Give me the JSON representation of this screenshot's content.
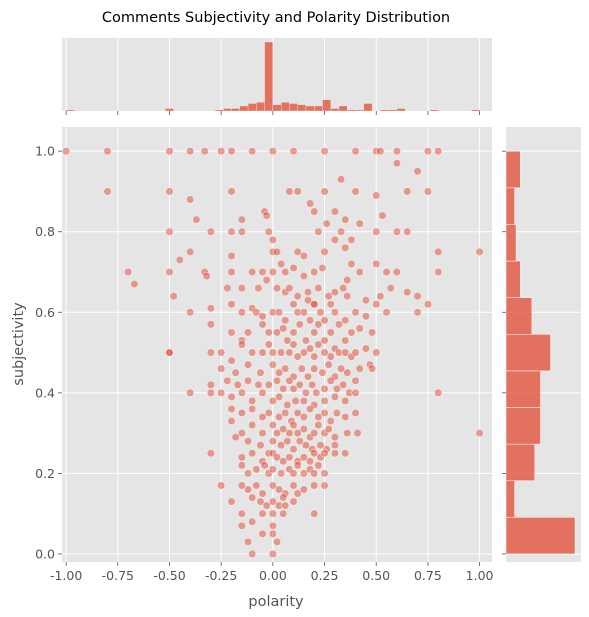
{
  "chart_data": {
    "type": "scatter",
    "title": "Comments Subjectivity and Polarity Distribution",
    "xlabel": "polarity",
    "ylabel": "subjectivity",
    "xlim": [
      -1.02,
      1.06
    ],
    "ylim": [
      -0.02,
      1.06
    ],
    "xticks": [
      "-1.00",
      "-0.75",
      "-0.50",
      "-0.25",
      "0.00",
      "0.25",
      "0.50",
      "0.75",
      "1.00"
    ],
    "yticks": [
      "0.0",
      "0.2",
      "0.4",
      "0.6",
      "0.8",
      "1.0"
    ],
    "grid": true,
    "style": "ggplot",
    "color": "#E24A33",
    "marginal_x_hist": {
      "bin_edges_start": -1.0,
      "bin_width": 0.04,
      "counts": [
        1,
        0,
        0,
        0,
        0,
        0,
        0,
        0,
        0,
        0,
        0,
        0,
        2,
        0,
        0,
        0,
        0,
        0,
        1,
        2,
        2,
        4,
        6,
        7,
        55,
        5,
        7,
        6,
        5,
        4,
        4,
        9,
        2,
        4,
        1,
        1,
        6,
        0,
        1,
        1,
        2,
        0,
        0,
        0,
        1,
        0,
        0,
        0,
        0,
        1
      ]
    },
    "marginal_y_hist": {
      "bin_edges_start": 0.0,
      "bin_width": 0.0909,
      "counts": [
        48,
        6,
        20,
        24,
        24,
        31,
        18,
        10,
        7,
        6,
        10
      ]
    },
    "points": [
      [
        -1.0,
        1.0
      ],
      [
        -0.8,
        1.0
      ],
      [
        -0.8,
        0.9
      ],
      [
        -0.5,
        1.0
      ],
      [
        -0.5,
        0.9
      ],
      [
        -0.5,
        0.8
      ],
      [
        -0.5,
        0.7
      ],
      [
        -0.5,
        0.5
      ],
      [
        -0.7,
        0.7
      ],
      [
        -0.67,
        0.67
      ],
      [
        -0.48,
        0.64
      ],
      [
        -0.4,
        1.0
      ],
      [
        -0.33,
        1.0
      ],
      [
        -0.25,
        1.0
      ],
      [
        -0.2,
        1.0
      ],
      [
        -0.1,
        1.0
      ],
      [
        0.0,
        1.0
      ],
      [
        0.1,
        1.0
      ],
      [
        0.25,
        1.0
      ],
      [
        0.4,
        1.0
      ],
      [
        0.5,
        1.0
      ],
      [
        0.52,
        1.0
      ],
      [
        0.6,
        1.0
      ],
      [
        0.75,
        1.0
      ],
      [
        0.8,
        1.0
      ],
      [
        0.6,
        0.97
      ],
      [
        0.7,
        0.95
      ],
      [
        0.75,
        0.9
      ],
      [
        0.65,
        0.9
      ],
      [
        0.5,
        0.89
      ],
      [
        0.4,
        0.9
      ],
      [
        0.33,
        0.93
      ],
      [
        0.25,
        0.9
      ],
      [
        0.12,
        0.9
      ],
      [
        0.08,
        0.9
      ],
      [
        -0.2,
        0.9
      ],
      [
        -0.4,
        0.88
      ],
      [
        -0.3,
        0.8
      ],
      [
        -0.15,
        0.83
      ],
      [
        -0.2,
        0.8
      ],
      [
        -0.04,
        0.85
      ],
      [
        -0.03,
        0.84
      ],
      [
        0.18,
        0.87
      ],
      [
        0.2,
        0.85
      ],
      [
        0.3,
        0.85
      ],
      [
        0.33,
        0.8
      ],
      [
        0.35,
        0.83
      ],
      [
        0.42,
        0.82
      ],
      [
        0.5,
        0.8
      ],
      [
        0.53,
        0.84
      ],
      [
        0.6,
        0.8
      ],
      [
        0.65,
        0.8
      ],
      [
        -0.37,
        0.83
      ],
      [
        -0.15,
        0.8
      ],
      [
        -0.4,
        0.75
      ],
      [
        -0.45,
        0.73
      ],
      [
        -0.2,
        0.74
      ],
      [
        -0.02,
        0.8
      ],
      [
        0.0,
        0.78
      ],
      [
        0.0,
        0.75
      ],
      [
        0.02,
        0.75
      ],
      [
        0.12,
        0.75
      ],
      [
        0.15,
        0.74
      ],
      [
        0.25,
        0.75
      ],
      [
        0.3,
        0.78
      ],
      [
        0.35,
        0.76
      ],
      [
        0.38,
        0.78
      ],
      [
        0.5,
        0.72
      ],
      [
        0.8,
        0.75
      ],
      [
        1.0,
        0.75
      ],
      [
        0.22,
        0.8
      ],
      [
        0.26,
        0.82
      ],
      [
        -0.33,
        0.7
      ],
      [
        -0.2,
        0.7
      ],
      [
        -0.1,
        0.7
      ],
      [
        -0.05,
        0.7
      ],
      [
        0.0,
        0.7
      ],
      [
        0.04,
        0.72
      ],
      [
        0.06,
        0.7
      ],
      [
        0.1,
        0.71
      ],
      [
        0.15,
        0.69
      ],
      [
        0.2,
        0.7
      ],
      [
        0.24,
        0.71
      ],
      [
        0.36,
        0.68
      ],
      [
        0.42,
        0.7
      ],
      [
        0.55,
        0.7
      ],
      [
        0.6,
        0.7
      ],
      [
        0.8,
        0.7
      ],
      [
        0.38,
        0.72
      ],
      [
        0.06,
        0.65
      ],
      [
        -0.32,
        0.69
      ],
      [
        -0.22,
        0.66
      ],
      [
        -0.15,
        0.66
      ],
      [
        -0.07,
        0.66
      ],
      [
        -0.03,
        0.68
      ],
      [
        0.02,
        0.66
      ],
      [
        0.08,
        0.66
      ],
      [
        0.12,
        0.64
      ],
      [
        0.17,
        0.65
      ],
      [
        0.22,
        0.66
      ],
      [
        0.27,
        0.64
      ],
      [
        0.3,
        0.65
      ],
      [
        0.34,
        0.66
      ],
      [
        0.36,
        0.64
      ],
      [
        0.45,
        0.63
      ],
      [
        0.52,
        0.64
      ],
      [
        0.57,
        0.66
      ],
      [
        0.65,
        0.65
      ],
      [
        0.7,
        0.64
      ],
      [
        0.75,
        0.62
      ],
      [
        -0.4,
        0.6
      ],
      [
        -0.3,
        0.61
      ],
      [
        -0.2,
        0.62
      ],
      [
        -0.15,
        0.6
      ],
      [
        -0.1,
        0.61
      ],
      [
        -0.08,
        0.6
      ],
      [
        -0.05,
        0.59
      ],
      [
        0.0,
        0.6
      ],
      [
        0.03,
        0.6
      ],
      [
        0.06,
        0.58
      ],
      [
        0.1,
        0.62
      ],
      [
        0.12,
        0.6
      ],
      [
        0.15,
        0.6
      ],
      [
        0.18,
        0.58
      ],
      [
        0.2,
        0.62
      ],
      [
        0.23,
        0.6
      ],
      [
        0.25,
        0.58
      ],
      [
        0.28,
        0.62
      ],
      [
        0.3,
        0.6
      ],
      [
        0.35,
        0.58
      ],
      [
        0.4,
        0.6
      ],
      [
        0.45,
        0.59
      ],
      [
        0.5,
        0.62
      ],
      [
        0.55,
        0.6
      ],
      [
        0.7,
        0.6
      ],
      [
        0.2,
        0.62
      ],
      [
        0.17,
        0.63
      ],
      [
        -0.3,
        0.57
      ],
      [
        -0.2,
        0.55
      ],
      [
        -0.15,
        0.53
      ],
      [
        -0.12,
        0.55
      ],
      [
        -0.05,
        0.57
      ],
      [
        -0.02,
        0.55
      ],
      [
        0.02,
        0.55
      ],
      [
        0.05,
        0.56
      ],
      [
        0.07,
        0.53
      ],
      [
        0.1,
        0.55
      ],
      [
        0.13,
        0.57
      ],
      [
        0.16,
        0.53
      ],
      [
        0.2,
        0.55
      ],
      [
        0.22,
        0.57
      ],
      [
        0.25,
        0.53
      ],
      [
        0.28,
        0.55
      ],
      [
        0.32,
        0.57
      ],
      [
        0.35,
        0.53
      ],
      [
        0.38,
        0.55
      ],
      [
        0.42,
        0.56
      ],
      [
        0.48,
        0.55
      ],
      [
        -0.5,
        0.5
      ],
      [
        -0.3,
        0.5
      ],
      [
        -0.25,
        0.5
      ],
      [
        -0.15,
        0.52
      ],
      [
        -0.1,
        0.5
      ],
      [
        -0.05,
        0.5
      ],
      [
        -0.02,
        0.52
      ],
      [
        0.0,
        0.5
      ],
      [
        0.04,
        0.5
      ],
      [
        0.08,
        0.5
      ],
      [
        0.1,
        0.52
      ],
      [
        0.12,
        0.49
      ],
      [
        0.15,
        0.5
      ],
      [
        0.18,
        0.51
      ],
      [
        0.2,
        0.49
      ],
      [
        0.22,
        0.52
      ],
      [
        0.25,
        0.5
      ],
      [
        0.28,
        0.49
      ],
      [
        0.3,
        0.51
      ],
      [
        0.32,
        0.5
      ],
      [
        0.35,
        0.5
      ],
      [
        0.38,
        0.49
      ],
      [
        0.4,
        0.5
      ],
      [
        0.45,
        0.51
      ],
      [
        0.5,
        0.5
      ],
      [
        -0.2,
        0.48
      ],
      [
        -0.25,
        0.46
      ],
      [
        -0.18,
        0.45
      ],
      [
        -0.12,
        0.47
      ],
      [
        -0.06,
        0.45
      ],
      [
        0.0,
        0.47
      ],
      [
        0.03,
        0.45
      ],
      [
        0.06,
        0.46
      ],
      [
        0.1,
        0.44
      ],
      [
        0.14,
        0.46
      ],
      [
        0.17,
        0.44
      ],
      [
        0.2,
        0.46
      ],
      [
        0.24,
        0.45
      ],
      [
        0.27,
        0.47
      ],
      [
        0.3,
        0.44
      ],
      [
        0.33,
        0.46
      ],
      [
        0.36,
        0.45
      ],
      [
        0.42,
        0.46
      ],
      [
        0.47,
        0.47
      ],
      [
        0.48,
        0.46
      ],
      [
        -0.3,
        0.42
      ],
      [
        -0.22,
        0.43
      ],
      [
        -0.17,
        0.42
      ],
      [
        -0.12,
        0.43
      ],
      [
        -0.07,
        0.42
      ],
      [
        -0.02,
        0.42
      ],
      [
        0.02,
        0.43
      ],
      [
        0.05,
        0.41
      ],
      [
        0.08,
        0.43
      ],
      [
        0.1,
        0.41
      ],
      [
        0.13,
        0.42
      ],
      [
        0.16,
        0.4
      ],
      [
        0.19,
        0.42
      ],
      [
        0.21,
        0.4
      ],
      [
        0.25,
        0.41
      ],
      [
        0.28,
        0.43
      ],
      [
        0.31,
        0.41
      ],
      [
        0.34,
        0.42
      ],
      [
        0.37,
        0.4
      ],
      [
        0.4,
        0.43
      ],
      [
        -0.4,
        0.4
      ],
      [
        -0.3,
        0.4
      ],
      [
        -0.25,
        0.4
      ],
      [
        -0.2,
        0.39
      ],
      [
        -0.15,
        0.4
      ],
      [
        -0.1,
        0.38
      ],
      [
        -0.05,
        0.4
      ],
      [
        0.0,
        0.38
      ],
      [
        0.03,
        0.39
      ],
      [
        0.07,
        0.37
      ],
      [
        0.11,
        0.38
      ],
      [
        0.15,
        0.38
      ],
      [
        0.2,
        0.37
      ],
      [
        0.25,
        0.38
      ],
      [
        0.3,
        0.39
      ],
      [
        0.35,
        0.38
      ],
      [
        0.4,
        0.4
      ],
      [
        0.8,
        0.4
      ],
      [
        -0.2,
        0.36
      ],
      [
        -0.15,
        0.35
      ],
      [
        -0.1,
        0.36
      ],
      [
        -0.05,
        0.34
      ],
      [
        -0.02,
        0.35
      ],
      [
        0.03,
        0.34
      ],
      [
        0.06,
        0.35
      ],
      [
        0.09,
        0.33
      ],
      [
        0.12,
        0.35
      ],
      [
        0.15,
        0.34
      ],
      [
        0.18,
        0.36
      ],
      [
        0.22,
        0.34
      ],
      [
        0.25,
        0.35
      ],
      [
        0.28,
        0.33
      ],
      [
        0.31,
        0.35
      ],
      [
        0.35,
        0.34
      ],
      [
        0.4,
        0.35
      ],
      [
        -0.2,
        0.33
      ],
      [
        -0.15,
        0.3
      ],
      [
        -0.1,
        0.32
      ],
      [
        -0.05,
        0.3
      ],
      [
        0.0,
        0.32
      ],
      [
        0.02,
        0.3
      ],
      [
        0.05,
        0.31
      ],
      [
        0.08,
        0.3
      ],
      [
        0.1,
        0.32
      ],
      [
        0.12,
        0.3
      ],
      [
        0.15,
        0.31
      ],
      [
        0.18,
        0.29
      ],
      [
        0.2,
        0.3
      ],
      [
        0.22,
        0.32
      ],
      [
        0.25,
        0.3
      ],
      [
        0.27,
        0.31
      ],
      [
        0.3,
        0.29
      ],
      [
        0.36,
        0.3
      ],
      [
        0.41,
        0.3
      ],
      [
        1.0,
        0.3
      ],
      [
        -0.18,
        0.29
      ],
      [
        -0.12,
        0.28
      ],
      [
        -0.06,
        0.27
      ],
      [
        0.0,
        0.28
      ],
      [
        0.04,
        0.27
      ],
      [
        0.07,
        0.28
      ],
      [
        0.1,
        0.26
      ],
      [
        0.13,
        0.28
      ],
      [
        0.16,
        0.27
      ],
      [
        0.19,
        0.26
      ],
      [
        0.23,
        0.27
      ],
      [
        0.26,
        0.26
      ],
      [
        0.3,
        0.27
      ],
      [
        -0.3,
        0.25
      ],
      [
        -0.15,
        0.24
      ],
      [
        -0.1,
        0.25
      ],
      [
        -0.05,
        0.23
      ],
      [
        -0.02,
        0.25
      ],
      [
        0.0,
        0.25
      ],
      [
        0.02,
        0.24
      ],
      [
        0.05,
        0.23
      ],
      [
        0.08,
        0.24
      ],
      [
        0.12,
        0.23
      ],
      [
        0.15,
        0.24
      ],
      [
        0.18,
        0.23
      ],
      [
        0.2,
        0.25
      ],
      [
        0.23,
        0.24
      ],
      [
        0.25,
        0.25
      ],
      [
        0.3,
        0.25
      ],
      [
        0.35,
        0.25
      ],
      [
        -0.15,
        0.22
      ],
      [
        -0.12,
        0.2
      ],
      [
        -0.08,
        0.21
      ],
      [
        -0.04,
        0.22
      ],
      [
        -0.02,
        0.2
      ],
      [
        0.0,
        0.21
      ],
      [
        0.04,
        0.2
      ],
      [
        0.08,
        0.21
      ],
      [
        0.1,
        0.2
      ],
      [
        0.12,
        0.22
      ],
      [
        0.15,
        0.2
      ],
      [
        0.18,
        0.21
      ],
      [
        0.2,
        0.2
      ],
      [
        0.22,
        0.22
      ],
      [
        0.25,
        0.2
      ],
      [
        -0.25,
        0.17
      ],
      [
        -0.15,
        0.17
      ],
      [
        -0.12,
        0.16
      ],
      [
        -0.08,
        0.17
      ],
      [
        -0.05,
        0.15
      ],
      [
        0.0,
        0.17
      ],
      [
        0.03,
        0.16
      ],
      [
        0.06,
        0.15
      ],
      [
        0.1,
        0.17
      ],
      [
        0.12,
        0.15
      ],
      [
        0.15,
        0.16
      ],
      [
        0.2,
        0.17
      ],
      [
        0.25,
        0.17
      ],
      [
        -0.2,
        0.13
      ],
      [
        -0.1,
        0.14
      ],
      [
        -0.06,
        0.13
      ],
      [
        -0.03,
        0.12
      ],
      [
        0.0,
        0.13
      ],
      [
        0.03,
        0.12
      ],
      [
        0.06,
        0.12
      ],
      [
        0.1,
        0.13
      ],
      [
        0.05,
        0.14
      ],
      [
        -0.15,
        0.1
      ],
      [
        -0.05,
        0.1
      ],
      [
        0.0,
        0.1
      ],
      [
        0.05,
        0.1
      ],
      [
        0.2,
        0.1
      ],
      [
        -0.1,
        0.08
      ],
      [
        -0.15,
        0.07
      ],
      [
        0.0,
        0.07
      ],
      [
        -0.05,
        0.05
      ],
      [
        0.0,
        0.05
      ],
      [
        -0.12,
        0.03
      ],
      [
        0.02,
        0.03
      ],
      [
        -0.1,
        0.0
      ],
      [
        0.0,
        0.0
      ]
    ]
  }
}
